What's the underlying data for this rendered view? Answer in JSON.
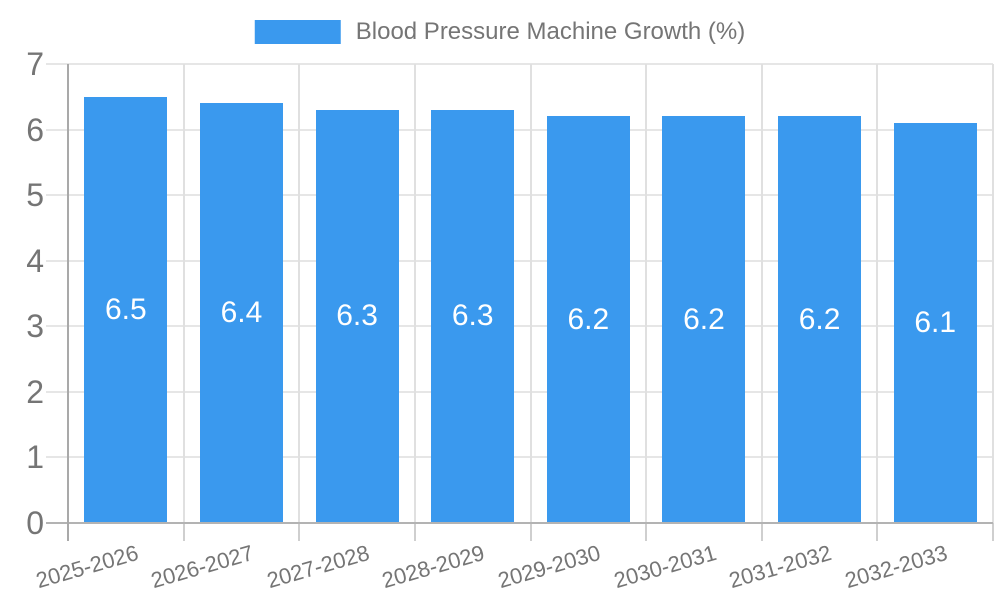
{
  "chart_data": {
    "type": "bar",
    "title": "",
    "series_name": "Blood Pressure Machine Growth (%)",
    "categories": [
      "2025-2026",
      "2026-2027",
      "2027-2028",
      "2028-2029",
      "2029-2030",
      "2030-2031",
      "2031-2032",
      "2032-2033"
    ],
    "values": [
      6.5,
      6.4,
      6.3,
      6.3,
      6.2,
      6.2,
      6.2,
      6.1
    ],
    "value_label_decimals": 1,
    "xlabel": "",
    "ylabel": "",
    "ylim": [
      0,
      7
    ],
    "ytick_step": 1,
    "grid": true,
    "legend_position": "top",
    "colors": {
      "bar": "#3a99ee",
      "value_label": "#ffffff",
      "axis_label": "#757575",
      "gridline": "#e6e6e6",
      "vertical_gridline": "#e0e0e0",
      "baseline": "#b3b3b3",
      "axis_line": "#a9a9a9",
      "tick": "#cfcfcf",
      "background": "#ffffff"
    }
  }
}
